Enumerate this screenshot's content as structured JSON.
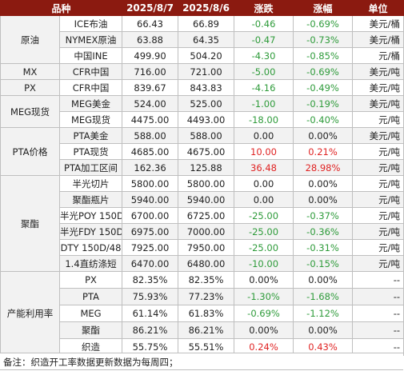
{
  "header": {
    "col_category": "品种",
    "col_date1": "2025/8/7",
    "col_date2": "2025/8/6",
    "col_change": "涨跌",
    "col_pct": "涨幅",
    "col_unit": "单位"
  },
  "groups": [
    {
      "name": "原油",
      "rows": [
        {
          "item": "ICE布油",
          "v1": "66.43",
          "v2": "66.89",
          "chg": "-0.46",
          "pct": "-0.69%",
          "unit": "美元/桶",
          "dir": "neg"
        },
        {
          "item": "NYMEX原油",
          "v1": "63.88",
          "v2": "64.35",
          "chg": "-0.47",
          "pct": "-0.73%",
          "unit": "美元/桶",
          "dir": "neg"
        },
        {
          "item": "中国INE",
          "v1": "499.90",
          "v2": "504.20",
          "chg": "-4.30",
          "pct": "-0.85%",
          "unit": "元/桶",
          "dir": "neg"
        }
      ]
    },
    {
      "name": "MX",
      "rows": [
        {
          "item": "CFR中国",
          "v1": "716.00",
          "v2": "721.00",
          "chg": "-5.00",
          "pct": "-0.69%",
          "unit": "美元/吨",
          "dir": "neg"
        }
      ]
    },
    {
      "name": "PX",
      "rows": [
        {
          "item": "CFR中国",
          "v1": "839.67",
          "v2": "843.83",
          "chg": "-4.16",
          "pct": "-0.49%",
          "unit": "美元/吨",
          "dir": "neg"
        }
      ]
    },
    {
      "name": "MEG现货",
      "rows": [
        {
          "item": "MEG美金",
          "v1": "524.00",
          "v2": "525.00",
          "chg": "-1.00",
          "pct": "-0.19%",
          "unit": "美元/吨",
          "dir": "neg"
        },
        {
          "item": "MEG现货",
          "v1": "4475.00",
          "v2": "4493.00",
          "chg": "-18.00",
          "pct": "-0.40%",
          "unit": "元/吨",
          "dir": "neg"
        }
      ]
    },
    {
      "name": "PTA价格",
      "rows": [
        {
          "item": "PTA美金",
          "v1": "588.00",
          "v2": "588.00",
          "chg": "0.00",
          "pct": "0.00%",
          "unit": "美元/吨",
          "dir": "neu"
        },
        {
          "item": "PTA现货",
          "v1": "4685.00",
          "v2": "4675.00",
          "chg": "10.00",
          "pct": "0.21%",
          "unit": "元/吨",
          "dir": "pos"
        },
        {
          "item": "PTA加工区间",
          "v1": "162.36",
          "v2": "125.88",
          "chg": "36.48",
          "pct": "28.98%",
          "unit": "元/吨",
          "dir": "pos"
        }
      ]
    },
    {
      "name": "聚酯",
      "rows": [
        {
          "item": "半光切片",
          "v1": "5800.00",
          "v2": "5800.00",
          "chg": "0.00",
          "pct": "0.00%",
          "unit": "元/吨",
          "dir": "neu"
        },
        {
          "item": "聚酯瓶片",
          "v1": "5940.00",
          "v2": "5940.00",
          "chg": "0.00",
          "pct": "0.00%",
          "unit": "元/吨",
          "dir": "neu"
        },
        {
          "item": "半光POY 150D",
          "v1": "6700.00",
          "v2": "6725.00",
          "chg": "-25.00",
          "pct": "-0.37%",
          "unit": "元/吨",
          "dir": "neg"
        },
        {
          "item": "半光FDY 150D",
          "v1": "6975.00",
          "v2": "7000.00",
          "chg": "-25.00",
          "pct": "-0.36%",
          "unit": "元/吨",
          "dir": "neg"
        },
        {
          "item": "DTY 150D/48",
          "v1": "7925.00",
          "v2": "7950.00",
          "chg": "-25.00",
          "pct": "-0.31%",
          "unit": "元/吨",
          "dir": "neg"
        },
        {
          "item": "1.4直纺涤短",
          "v1": "6470.00",
          "v2": "6480.00",
          "chg": "-10.00",
          "pct": "-0.15%",
          "unit": "元/吨",
          "dir": "neg"
        }
      ]
    },
    {
      "name": "产能利用率",
      "rows": [
        {
          "item": "PX",
          "v1": "82.35%",
          "v2": "82.35%",
          "chg": "0.00%",
          "pct": "0.00%",
          "unit": "--",
          "dir": "neu"
        },
        {
          "item": "PTA",
          "v1": "75.93%",
          "v2": "77.23%",
          "chg": "-1.30%",
          "pct": "-1.68%",
          "unit": "--",
          "dir": "neg"
        },
        {
          "item": "MEG",
          "v1": "61.14%",
          "v2": "61.83%",
          "chg": "-0.69%",
          "pct": "-1.12%",
          "unit": "--",
          "dir": "neg"
        },
        {
          "item": "聚酯",
          "v1": "86.21%",
          "v2": "86.21%",
          "chg": "0.00%",
          "pct": "0.00%",
          "unit": "--",
          "dir": "neu"
        },
        {
          "item": "织造",
          "v1": "55.75%",
          "v2": "55.51%",
          "chg": "0.24%",
          "pct": "0.43%",
          "unit": "--",
          "dir": "pos"
        }
      ]
    }
  ],
  "note": "备注：织造开工率数据更新数据为每周四；",
  "colors": {
    "header_bg": "#8b1a10",
    "negative": "#2e9b3a",
    "positive": "#e02424"
  }
}
